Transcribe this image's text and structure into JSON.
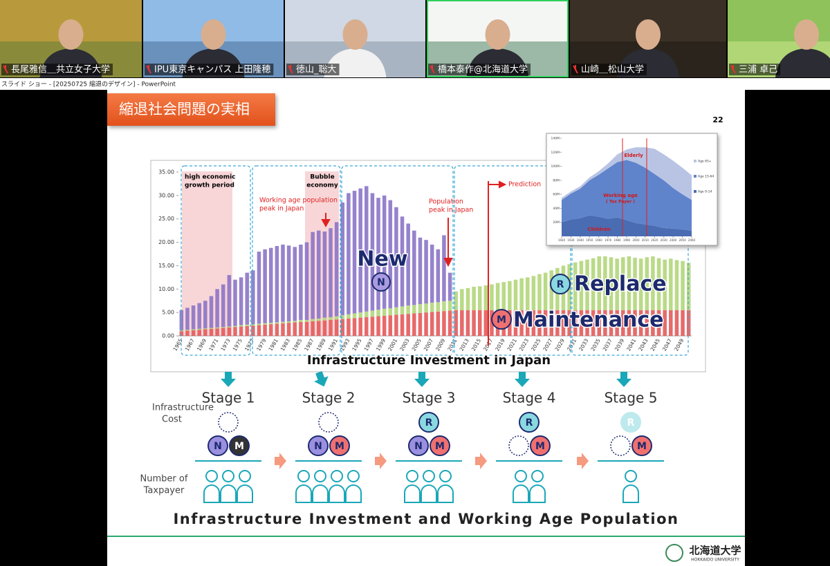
{
  "participants": [
    "長尾雅信＿共立女子大学",
    "IPU東京キャンパス 上田隆穂",
    "徳山_聡大",
    "橋本泰作@北海道大学",
    "山崎＿松山大学",
    "三浦 卓己"
  ],
  "window_title": "スライド ショー - [20250725 縮退のデザイン] - PowerPoint",
  "slide": {
    "title": "縮退社会問題の実相",
    "page_number": "22",
    "stages": [
      {
        "label": "Stage 1",
        "left": "N",
        "right": "M"
      },
      {
        "label": "Stage 2",
        "left": "N",
        "right": "M"
      },
      {
        "label": "Stage 3",
        "top": "R",
        "left": "N",
        "right": "M"
      },
      {
        "label": "Stage 4",
        "top": "R",
        "right": "M"
      },
      {
        "label": "Stage 5",
        "top": "R",
        "right": "M"
      }
    ],
    "cost_label": [
      "Infrastructure",
      "Cost"
    ],
    "taxpayer_label": [
      "Number of",
      "Taxpayer"
    ],
    "footer_title": "Infrastructure Investment and Working Age Population",
    "logo": {
      "name": "北海道大学",
      "sub": "HOKKAIDO UNIVERSITY"
    }
  },
  "chart_data": [
    {
      "type": "bar",
      "stacked": true,
      "title": "Infrastructure Investment in Japan",
      "categories": [
        "1965",
        null,
        "1967",
        null,
        "1969",
        null,
        "1971",
        null,
        "1973",
        null,
        "1975",
        null,
        "1977",
        null,
        "1979",
        null,
        "1981",
        null,
        "1983",
        null,
        "1985",
        null,
        "1987",
        null,
        "1989",
        null,
        "1991",
        null,
        "1993",
        null,
        "1995",
        null,
        "1997",
        null,
        "1999",
        null,
        "2001",
        null,
        "2003",
        null,
        "2005",
        null,
        "2007",
        null,
        "2009",
        null,
        "2011",
        null,
        "2013",
        null,
        "2015",
        null,
        "2017",
        null,
        "2019",
        null,
        "2021",
        null,
        "2023",
        null,
        "2025",
        null,
        "2027",
        null,
        "2029",
        null,
        "2031",
        null,
        "2033",
        null,
        "2035",
        null,
        "2037",
        null,
        "2039",
        null,
        "2041",
        null,
        "2043",
        null,
        "2045",
        null,
        "2047",
        null,
        "2049",
        null
      ],
      "series": [
        {
          "name": "Maintenance",
          "color": "#e45a5a",
          "values": [
            1.0,
            1.1,
            1.2,
            1.3,
            1.4,
            1.5,
            1.6,
            1.7,
            1.8,
            1.9,
            2.0,
            2.1,
            2.2,
            2.3,
            2.4,
            2.5,
            2.6,
            2.7,
            2.8,
            2.9,
            3.0,
            3.0,
            3.1,
            3.2,
            3.3,
            3.4,
            3.5,
            3.6,
            3.7,
            3.8,
            3.9,
            4.0,
            4.1,
            4.2,
            4.3,
            4.4,
            4.5,
            4.6,
            4.7,
            4.8,
            4.9,
            5.0,
            5.1,
            5.2,
            5.3,
            5.4,
            5.5,
            5.5,
            5.5,
            5.5,
            5.5,
            5.5,
            5.5,
            5.5,
            5.5,
            5.5,
            5.5,
            5.5,
            5.5,
            5.5,
            5.5,
            5.5,
            5.5,
            5.5,
            5.5,
            5.5,
            5.5,
            5.5,
            5.5,
            5.5,
            5.5,
            5.5,
            5.5,
            5.5,
            5.5,
            5.5,
            5.5,
            5.5,
            5.5,
            5.5,
            5.5,
            5.5,
            5.5,
            5.5,
            5.5,
            5.5
          ]
        },
        {
          "name": "Replace",
          "color": "#b3d67a",
          "values": [
            0.2,
            0.2,
            0.2,
            0.2,
            0.2,
            0.2,
            0.2,
            0.2,
            0.2,
            0.2,
            0.3,
            0.3,
            0.3,
            0.3,
            0.3,
            0.3,
            0.3,
            0.3,
            0.3,
            0.3,
            0.4,
            0.4,
            0.5,
            0.5,
            0.6,
            0.6,
            0.7,
            0.8,
            0.9,
            1.0,
            1.1,
            1.2,
            1.3,
            1.4,
            1.5,
            1.5,
            1.6,
            1.7,
            1.8,
            1.8,
            1.9,
            1.9,
            2.0,
            2.0,
            2.1,
            2.1,
            4.0,
            4.5,
            4.7,
            5.0,
            5.1,
            5.3,
            5.5,
            5.8,
            6.0,
            6.2,
            6.5,
            6.8,
            7.0,
            7.3,
            7.7,
            8.0,
            8.5,
            9.0,
            9.5,
            9.8,
            10.2,
            10.5,
            10.8,
            11.1,
            11.5,
            11.5,
            11.3,
            11.0,
            11.3,
            11.5,
            11.2,
            11.0,
            11.3,
            11.5,
            11.1,
            10.8,
            11.0,
            10.7,
            10.5,
            10.1
          ]
        },
        {
          "name": "New",
          "color": "#8b74c6",
          "values": [
            4.3,
            4.7,
            5.1,
            5.5,
            5.9,
            6.8,
            8.2,
            9.1,
            11.0,
            9.9,
            10.2,
            11.1,
            11.5,
            15.4,
            15.8,
            16.0,
            16.3,
            16.5,
            16.2,
            15.8,
            16.1,
            16.6,
            18.6,
            18.8,
            18.4,
            19.0,
            20.1,
            24.1,
            25.9,
            26.2,
            26.5,
            26.8,
            25.1,
            23.9,
            24.2,
            23.1,
            21.4,
            19.2,
            17.5,
            15.9,
            14.2,
            13.6,
            12.4,
            11.3,
            14.1,
            6.0,
            0,
            0,
            0,
            0,
            0,
            0,
            0,
            0,
            0,
            0,
            0,
            0,
            0,
            0,
            0,
            0,
            0,
            0,
            0,
            0,
            0,
            0,
            0,
            0,
            0,
            0,
            0,
            0,
            0,
            0,
            0,
            0,
            0,
            0,
            0,
            0,
            0,
            0,
            0,
            0
          ]
        }
      ],
      "ylim": [
        0,
        35
      ],
      "yticks": [
        {
          "value": 0,
          "label": "0.00"
        },
        {
          "value": 5,
          "label": "5.00"
        },
        {
          "value": 10,
          "label": "10.00"
        },
        {
          "value": 15,
          "label": "15.00"
        },
        {
          "value": 20,
          "label": "20.00"
        },
        {
          "value": 25,
          "label": "25.00"
        },
        {
          "value": 30,
          "label": "30.00"
        },
        {
          "value": 35,
          "label": "35.00"
        }
      ],
      "annotations": {
        "growth": [
          "high economic",
          "growth period"
        ],
        "bubble": [
          "Bubble",
          "economy"
        ],
        "working_peak": [
          "Working age population",
          "peak in Japan"
        ],
        "population_peak": [
          "Population",
          "peak in Japan"
        ],
        "prediction": "Prediction",
        "new": "New",
        "replace": "Replace",
        "maintenance": "Maintenance",
        "badge_n": "N",
        "badge_r": "R",
        "badge_m": "M"
      }
    },
    {
      "type": "area",
      "stacked": true,
      "title_labels": {
        "elderly": "Elderly",
        "working": [
          "Working age",
          "( Tax Payer )"
        ],
        "children": "Children"
      },
      "x": [
        1920,
        1930,
        1940,
        1950,
        1960,
        1970,
        1980,
        1990,
        2000,
        2010,
        2020,
        2030,
        2040,
        2050,
        2060
      ],
      "series": [
        {
          "name": "Age 65+",
          "color": "#b9c4e4",
          "values": [
            3,
            3,
            3.5,
            4,
            5,
            7,
            11,
            15,
            22,
            29,
            36,
            37,
            39,
            38,
            35
          ]
        },
        {
          "name": "Age 15-64",
          "color": "#5f84cb",
          "values": [
            32,
            37,
            42,
            50,
            60,
            72,
            79,
            86,
            86,
            81,
            74,
            68,
            58,
            50,
            44
          ]
        },
        {
          "name": "Age 0-14",
          "color": "#4a6cb3",
          "values": [
            20,
            24,
            26,
            30,
            28,
            25,
            27,
            23,
            19,
            17,
            15,
            12,
            11,
            10,
            8
          ]
        }
      ],
      "xlim": [
        1920,
        2060
      ],
      "xticks": [
        1920,
        1930,
        1940,
        1950,
        1960,
        1970,
        1980,
        1990,
        2000,
        2010,
        2020,
        2030,
        2040,
        2050,
        2060
      ],
      "ylim": [
        0,
        140
      ],
      "yticks": [
        {
          "value": 20,
          "label": "20M"
        },
        {
          "value": 40,
          "label": "40M"
        },
        {
          "value": 60,
          "label": "60M"
        },
        {
          "value": 80,
          "label": "80M"
        },
        {
          "value": 100,
          "label": "100M"
        },
        {
          "value": 120,
          "label": "120M"
        },
        {
          "value": 140,
          "label": "140M"
        }
      ],
      "legend": "right"
    }
  ]
}
